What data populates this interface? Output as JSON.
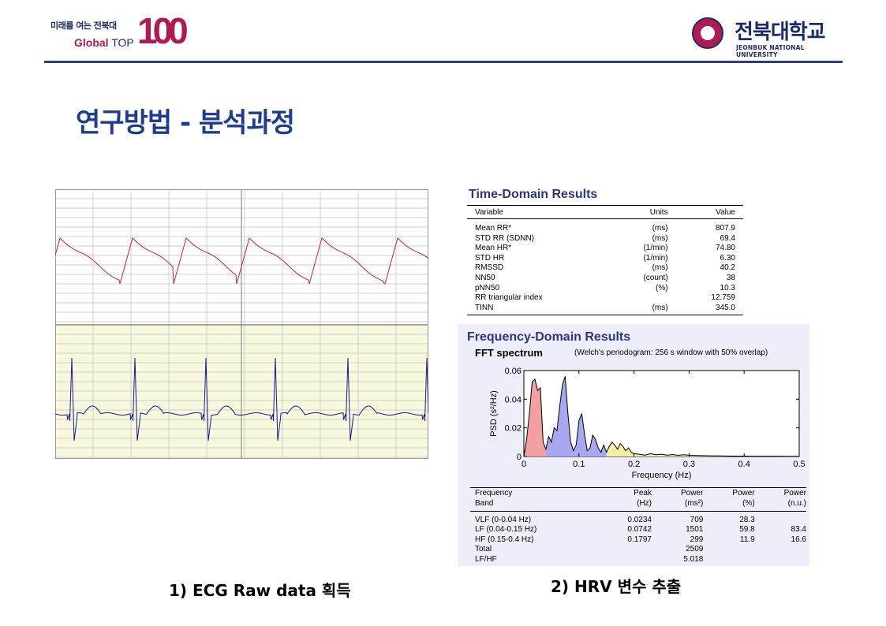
{
  "header": {
    "slogan": "미래를 여는 전북대",
    "global_word": "Global",
    "top_word": "TOP",
    "number": "100",
    "university_kr": "전북대학교",
    "university_en": "JEONBUK NATIONAL UNIVERSITY"
  },
  "title": "연구방법 - 분석과정",
  "time_domain": {
    "title": "Time-Domain Results",
    "columns": [
      "Variable",
      "Units",
      "Value"
    ],
    "rows": [
      {
        "variable": "Mean RR*",
        "units": "(ms)",
        "value": "807.9"
      },
      {
        "variable": "STD RR (SDNN)",
        "units": "(ms)",
        "value": "69.4"
      },
      {
        "variable": "Mean HR*",
        "units": "(1/min)",
        "value": "74.80"
      },
      {
        "variable": "STD HR",
        "units": "(1/min)",
        "value": "6.30"
      },
      {
        "variable": "RMSSD",
        "units": "(ms)",
        "value": "40.2"
      },
      {
        "variable": "NN50",
        "units": "(count)",
        "value": "38"
      },
      {
        "variable": "pNN50",
        "units": "(%)",
        "value": "10.3"
      },
      {
        "variable": "RR triangular index",
        "units": "",
        "value": "12.759"
      },
      {
        "variable": "TINN",
        "units": "(ms)",
        "value": "345.0"
      }
    ]
  },
  "frequency_domain": {
    "title": "Frequency-Domain Results",
    "subtitle": "FFT spectrum",
    "note": "(Welch's periodogram: 256 s window with 50% overlap)",
    "header_row1": [
      "Frequency",
      "Peak",
      "Power",
      "Power",
      "Power"
    ],
    "header_row2": [
      "Band",
      "(Hz)",
      "(ms²)",
      "(%)",
      "(n.u.)"
    ],
    "rows": [
      {
        "band": "VLF (0-0.04 Hz)",
        "peak": "0.0234",
        "power_ms2": "709",
        "power_pct": "28.3",
        "power_nu": ""
      },
      {
        "band": "LF (0.04-0.15 Hz)",
        "peak": "0.0742",
        "power_ms2": "1501",
        "power_pct": "59.8",
        "power_nu": "83.4"
      },
      {
        "band": "HF (0.15-0.4 Hz)",
        "peak": "0.1797",
        "power_ms2": "299",
        "power_pct": "11.9",
        "power_nu": "16.6"
      },
      {
        "band": "Total",
        "peak": "",
        "power_ms2": "2509",
        "power_pct": "",
        "power_nu": ""
      },
      {
        "band": "LF/HF",
        "peak": "",
        "power_ms2": "5.018",
        "power_pct": "",
        "power_nu": ""
      }
    ]
  },
  "chart_data": {
    "type": "area",
    "xlabel": "Frequency (Hz)",
    "ylabel": "PSD (s²/Hz)",
    "xlim": [
      0,
      0.5
    ],
    "ylim": [
      0,
      0.06
    ],
    "x_ticks": [
      "0",
      "0.1",
      "0.2",
      "0.3",
      "0.4",
      "0.5"
    ],
    "y_ticks": [
      "0",
      "0.02",
      "0.04",
      "0.06"
    ],
    "bands": [
      {
        "name": "VLF",
        "range": [
          0,
          0.04
        ],
        "color": "#f4a0a0"
      },
      {
        "name": "LF",
        "range": [
          0.04,
          0.15
        ],
        "color": "#a8a8f0"
      },
      {
        "name": "HF",
        "range": [
          0.15,
          0.4
        ],
        "color": "#f0f0a0"
      }
    ],
    "x": [
      0.0,
      0.005,
      0.01,
      0.015,
      0.02,
      0.025,
      0.03,
      0.035,
      0.04,
      0.045,
      0.05,
      0.055,
      0.06,
      0.065,
      0.07,
      0.075,
      0.08,
      0.085,
      0.09,
      0.095,
      0.1,
      0.105,
      0.11,
      0.115,
      0.12,
      0.125,
      0.13,
      0.135,
      0.14,
      0.145,
      0.15,
      0.155,
      0.16,
      0.165,
      0.17,
      0.175,
      0.18,
      0.185,
      0.19,
      0.195,
      0.2,
      0.21,
      0.22,
      0.23,
      0.24,
      0.25,
      0.26,
      0.27,
      0.28,
      0.29,
      0.3,
      0.32,
      0.34,
      0.36,
      0.38,
      0.4,
      0.42,
      0.44,
      0.46,
      0.48,
      0.5
    ],
    "psd": [
      0.0,
      0.012,
      0.03,
      0.052,
      0.054,
      0.046,
      0.048,
      0.01,
      0.005,
      0.014,
      0.01,
      0.02,
      0.018,
      0.035,
      0.05,
      0.056,
      0.03,
      0.01,
      0.004,
      0.008,
      0.025,
      0.03,
      0.016,
      0.004,
      0.006,
      0.015,
      0.012,
      0.006,
      0.003,
      0.008,
      0.003,
      0.007,
      0.01,
      0.008,
      0.005,
      0.009,
      0.007,
      0.004,
      0.006,
      0.003,
      0.002,
      0.0015,
      0.001,
      0.002,
      0.0012,
      0.0016,
      0.0009,
      0.0014,
      0.0008,
      0.0012,
      0.0009,
      0.0006,
      0.0005,
      0.0004,
      0.0003,
      0.0003,
      0.0002,
      0.0002,
      0.0002,
      0.0001,
      0.0001
    ]
  },
  "ecg_panel": {
    "background_top": "#ffffff",
    "background_bottom": "#f8f8dc",
    "signal1_color": "#cc2222",
    "signal2_color": "#1a1a8a"
  },
  "captions": {
    "left": "1) ECG Raw data 획득",
    "right": "2) HRV 변수 추출"
  }
}
